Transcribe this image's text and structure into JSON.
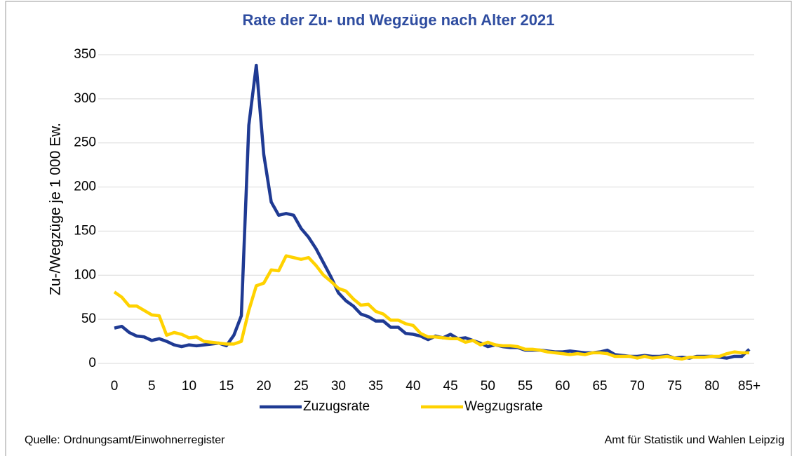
{
  "chart_data": {
    "type": "line",
    "title": "Rate der Zu- und Wegzüge nach Alter 2021",
    "y_label": "Zu-/Wegzüge je 1 000 Ew.",
    "source": "Quelle: Ordnungsamt/Einwohnerregister",
    "credit": "Amt für Statistik und Wahlen Leipzig",
    "x": [
      0,
      1,
      2,
      3,
      4,
      5,
      6,
      7,
      8,
      9,
      10,
      11,
      12,
      13,
      14,
      15,
      16,
      17,
      18,
      19,
      20,
      21,
      22,
      23,
      24,
      25,
      26,
      27,
      28,
      29,
      30,
      31,
      32,
      33,
      34,
      35,
      36,
      37,
      38,
      39,
      40,
      41,
      42,
      43,
      44,
      45,
      46,
      47,
      48,
      49,
      50,
      51,
      52,
      53,
      54,
      55,
      56,
      57,
      58,
      59,
      60,
      61,
      62,
      63,
      64,
      65,
      66,
      67,
      68,
      69,
      70,
      71,
      72,
      73,
      74,
      75,
      76,
      77,
      78,
      79,
      80,
      81,
      82,
      83,
      84,
      85
    ],
    "xlim": [
      0,
      85
    ],
    "xticks": [
      0,
      5,
      10,
      15,
      20,
      25,
      30,
      35,
      40,
      45,
      50,
      55,
      60,
      65,
      70,
      75,
      80,
      {
        "value": 85,
        "label": "85+"
      }
    ],
    "ylim": [
      0,
      350
    ],
    "yticks": [
      0,
      50,
      100,
      150,
      200,
      250,
      300,
      350
    ],
    "grid": true,
    "legend": "bottom",
    "series": [
      {
        "name": "Zuzugsrate",
        "color": "#1f3a93",
        "values": [
          40,
          42,
          35,
          31,
          30,
          26,
          28,
          25,
          21,
          19,
          21,
          20,
          21,
          22,
          23,
          20,
          32,
          54,
          270,
          338,
          237,
          183,
          168,
          170,
          168,
          153,
          143,
          130,
          114,
          98,
          80,
          71,
          65,
          56,
          53,
          48,
          48,
          41,
          41,
          34,
          33,
          31,
          27,
          31,
          29,
          33,
          28,
          29,
          26,
          23,
          19,
          21,
          19,
          18,
          18,
          15,
          15,
          15,
          14,
          13,
          13,
          14,
          13,
          12,
          12,
          13,
          15,
          10,
          9,
          8,
          8,
          9,
          8,
          8,
          9,
          6,
          7,
          6,
          8,
          8,
          8,
          7,
          6,
          8,
          8,
          16
        ]
      },
      {
        "name": "Wegzugsrate",
        "color": "#ffd200",
        "values": [
          81,
          75,
          65,
          65,
          60,
          55,
          54,
          32,
          35,
          33,
          29,
          30,
          25,
          24,
          23,
          22,
          22,
          25,
          60,
          88,
          91,
          106,
          105,
          122,
          120,
          118,
          120,
          111,
          100,
          93,
          85,
          82,
          73,
          66,
          67,
          59,
          56,
          49,
          49,
          45,
          43,
          34,
          30,
          30,
          29,
          28,
          28,
          24,
          26,
          21,
          24,
          21,
          20,
          20,
          19,
          16,
          16,
          15,
          13,
          12,
          11,
          10,
          11,
          10,
          12,
          12,
          11,
          8,
          8,
          8,
          6,
          8,
          6,
          7,
          8,
          6,
          5,
          7,
          7,
          7,
          8,
          8,
          11,
          13,
          12,
          12
        ]
      }
    ]
  }
}
